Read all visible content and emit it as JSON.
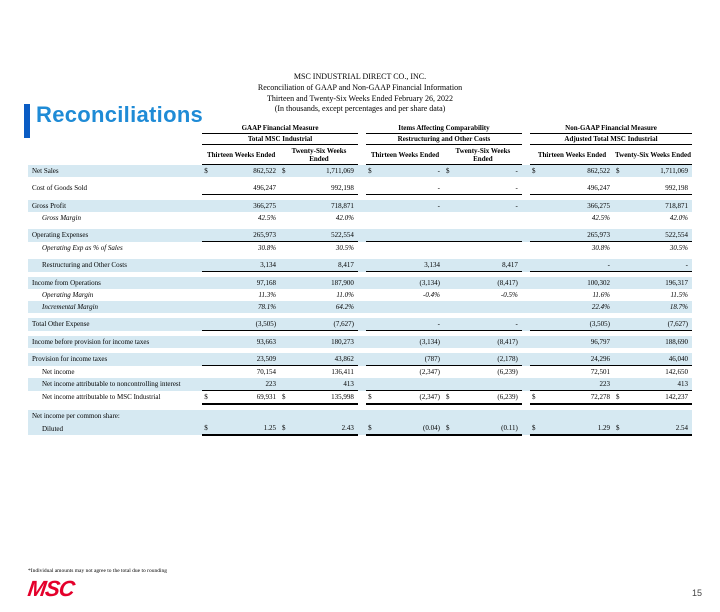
{
  "title": "Reconciliations",
  "company": "MSC INDUSTRIAL DIRECT CO., INC.",
  "subtitle1": "Reconciliation of GAAP and Non-GAAP Financial Information",
  "subtitle2": "Thirteen and Twenty-Six Weeks Ended February 26, 2022",
  "subtitle3": "(In thousands, except percentages and per share data)",
  "sections": {
    "gaap": "GAAP Financial Measure",
    "gaap_sub": "Total MSC Industrial",
    "items": "Items Affecting Comparability",
    "items_sub": "Restructuring and Other Costs",
    "nongaap": "Non-GAAP Financial Measure",
    "nongaap_sub": "Adjusted Total MSC Industrial"
  },
  "cols": {
    "c1": "Thirteen Weeks Ended",
    "c2": "Twenty-Six Weeks Ended",
    "c3": "Thirteen Weeks Ended",
    "c4": "Twenty-Six Weeks Ended",
    "c5": "Thirteen Weeks Ended",
    "c6": "Twenty-Six Weeks Ended"
  },
  "rows": {
    "netsales": {
      "l": "Net Sales",
      "v": [
        "862,522",
        "1,711,069",
        "-",
        "-",
        "862,522",
        "1,711,069"
      ],
      "cur": true
    },
    "cogs": {
      "l": "Cost of Goods Sold",
      "v": [
        "496,247",
        "992,198",
        "-",
        "-",
        "496,247",
        "992,198"
      ]
    },
    "gp": {
      "l": "Gross Profit",
      "v": [
        "366,275",
        "718,871",
        "-",
        "-",
        "366,275",
        "718,871"
      ]
    },
    "gm": {
      "l": "Gross Margin",
      "v": [
        "42.5%",
        "42.0%",
        "",
        "",
        "42.5%",
        "42.0%"
      ],
      "it": true
    },
    "opex": {
      "l": "Operating Expenses",
      "v": [
        "265,973",
        "522,554",
        "",
        "",
        "265,973",
        "522,554"
      ]
    },
    "opexpct": {
      "l": "Operating Exp as % of Sales",
      "v": [
        "30.8%",
        "30.5%",
        "",
        "",
        "30.8%",
        "30.5%"
      ],
      "it": true
    },
    "restr": {
      "l": "Restructuring and Other Costs",
      "v": [
        "3,134",
        "8,417",
        "3,134",
        "8,417",
        "-",
        "-"
      ]
    },
    "opinc": {
      "l": "Income from Operations",
      "v": [
        "97,168",
        "187,900",
        "(3,134)",
        "(8,417)",
        "100,302",
        "196,317"
      ]
    },
    "opmarg": {
      "l": "Operating Margin",
      "v": [
        "11.3%",
        "11.0%",
        "-0.4%",
        "-0.5%",
        "11.6%",
        "11.5%"
      ],
      "it": true
    },
    "incmarg": {
      "l": "Incremental Margin",
      "v": [
        "78.1%",
        "64.2%",
        "",
        "",
        "22.4%",
        "18.7%"
      ],
      "it": true
    },
    "othexp": {
      "l": "Total Other Expense",
      "v": [
        "(3,505)",
        "(7,627)",
        "-",
        "-",
        "(3,505)",
        "(7,627)"
      ]
    },
    "pretax": {
      "l": "Income before provision for income taxes",
      "v": [
        "93,663",
        "180,273",
        "(3,134)",
        "(8,417)",
        "96,797",
        "188,690"
      ]
    },
    "tax": {
      "l": "Provision for income taxes",
      "v": [
        "23,509",
        "43,862",
        "(787)",
        "(2,178)",
        "24,296",
        "46,040"
      ]
    },
    "ni": {
      "l": "Net income",
      "v": [
        "70,154",
        "136,411",
        "(2,347)",
        "(6,239)",
        "72,501",
        "142,650"
      ]
    },
    "nci": {
      "l": "Net income attributable to noncontrolling interest",
      "v": [
        "223",
        "413",
        "",
        "",
        "223",
        "413"
      ]
    },
    "msc": {
      "l": "Net income attributable to MSC Industrial",
      "v": [
        "69,931",
        "135,998",
        "(2,347)",
        "(6,239)",
        "72,278",
        "142,237"
      ],
      "cur": true
    },
    "eps_h": {
      "l": "Net income per common share:"
    },
    "eps": {
      "l": "Diluted",
      "v": [
        "1.25",
        "2.43",
        "(0.04)",
        "(0.11)",
        "1.29",
        "2.54"
      ],
      "cur": true
    }
  },
  "footnote": "*Individual amounts may not agree to the total due to rounding",
  "logo": "MSC",
  "page": "15",
  "colors": {
    "accent": "#1f8bd6",
    "bar": "#0a5cc4",
    "shade": "#d6e9f2",
    "logo": "#e4002b"
  }
}
